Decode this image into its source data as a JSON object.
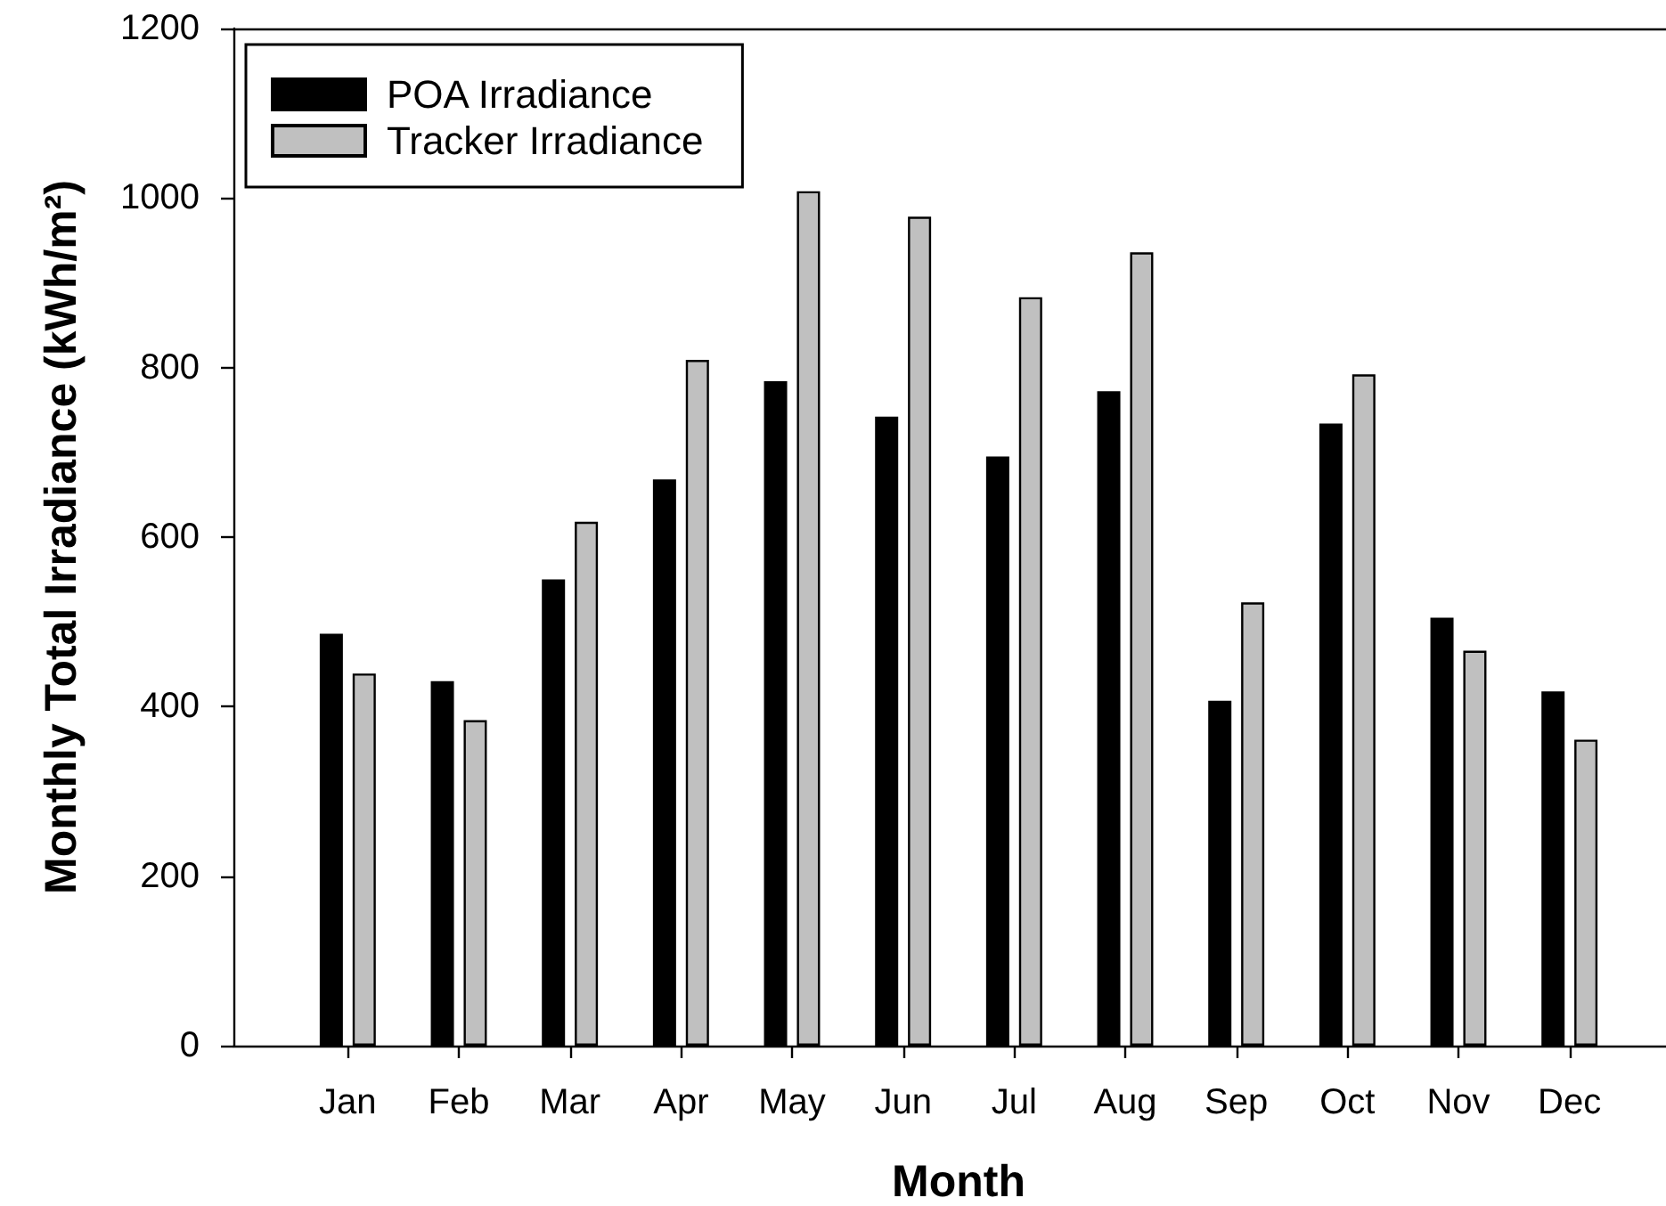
{
  "chart_data": {
    "type": "bar",
    "xlabel": "Month",
    "ylabel": "Monthly Total Irradiance (kWh/m²)",
    "categories": [
      "Jan",
      "Feb",
      "Mar",
      "Apr",
      "May",
      "Jun",
      "Jul",
      "Aug",
      "Sep",
      "Oct",
      "Nov",
      "Dec"
    ],
    "series": [
      {
        "name": "POA Irradiance",
        "color": "#000000",
        "values": [
          486,
          430,
          550,
          668,
          784,
          742,
          695,
          772,
          407,
          734,
          505,
          418
        ]
      },
      {
        "name": "Tracker Irradiance",
        "color": "#c0c0c0",
        "values": [
          439,
          384,
          618,
          809,
          1008,
          978,
          883,
          936,
          523,
          792,
          466,
          361
        ]
      }
    ],
    "ylim": [
      0,
      1200
    ],
    "yticks": [
      0,
      200,
      400,
      600,
      800,
      1000,
      1200
    ],
    "legend": "top left"
  }
}
